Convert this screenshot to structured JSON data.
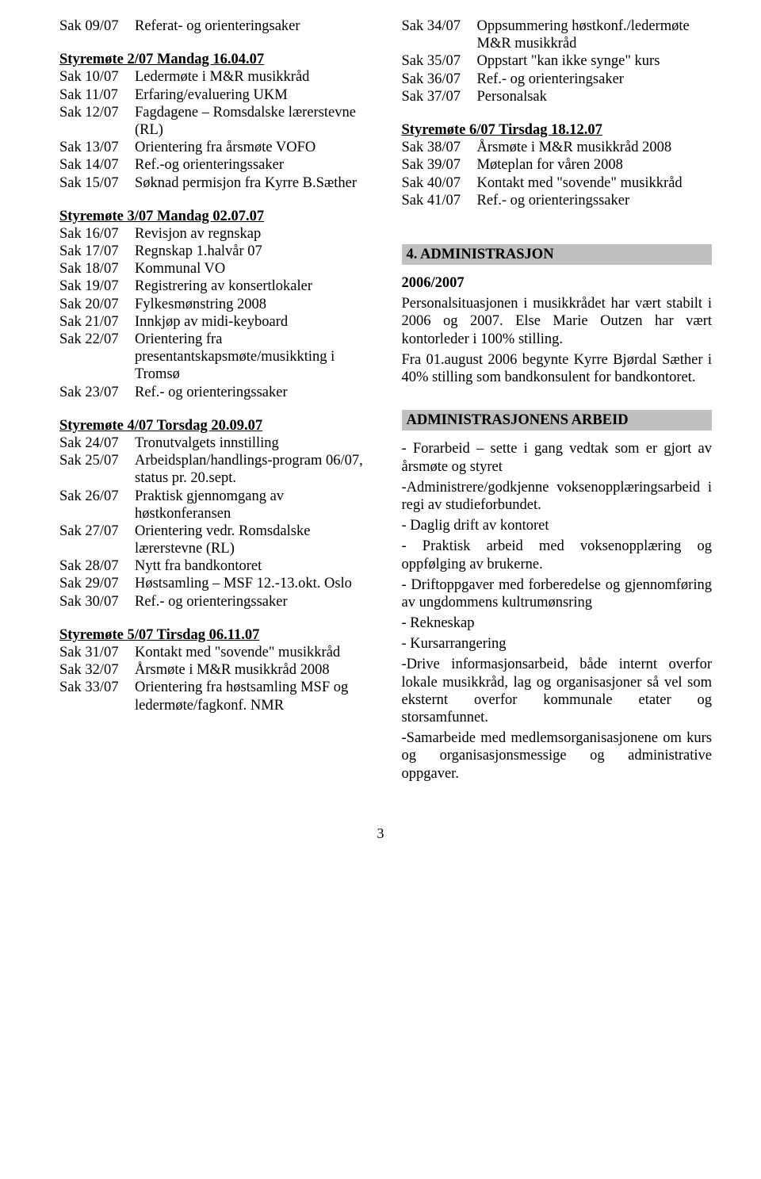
{
  "left": {
    "intro_rows": [
      {
        "label": "Sak 09/07",
        "text": "Referat- og orienteringsaker"
      }
    ],
    "meetings": [
      {
        "heading": "Styremøte 2/07  Mandag 16.04.07",
        "rows": [
          {
            "label": "Sak 10/07",
            "text": "Ledermøte i M&R musikkråd"
          },
          {
            "label": "Sak 11/07",
            "text": "Erfaring/evaluering UKM"
          },
          {
            "label": "Sak 12/07",
            "text": "Fagdagene – Romsdalske lærerstevne (RL)"
          },
          {
            "label": "Sak 13/07",
            "text": "Orientering fra årsmøte VOFO"
          },
          {
            "label": "Sak 14/07",
            "text": "Ref.-og orienteringssaker"
          },
          {
            "label": "Sak 15/07",
            "text": "Søknad permisjon fra Kyrre B.Sæther"
          }
        ]
      },
      {
        "heading": "Styremøte 3/07  Mandag 02.07.07",
        "rows": [
          {
            "label": "Sak 16/07",
            "text": "Revisjon av regnskap"
          },
          {
            "label": "Sak 17/07",
            "text": "Regnskap 1.halvår 07"
          },
          {
            "label": "Sak 18/07",
            "text": "Kommunal VO"
          },
          {
            "label": "Sak 19/07",
            "text": "Registrering av konsertlokaler"
          },
          {
            "label": "Sak 20/07",
            "text": "Fylkesmønstring 2008"
          },
          {
            "label": "Sak 21/07",
            "text": "Innkjøp av midi-keyboard"
          },
          {
            "label": "Sak 22/07",
            "text": "Orientering fra presentantskapsmøte/musikkting i Tromsø"
          },
          {
            "label": "Sak 23/07",
            "text": "Ref.- og orienteringssaker"
          }
        ]
      },
      {
        "heading": "Styremøte 4/07  Torsdag 20.09.07",
        "rows": [
          {
            "label": "Sak 24/07",
            "text": "Tronutvalgets innstilling"
          },
          {
            "label": "Sak 25/07",
            "text": "Arbeidsplan/handlings-program 06/07, status pr. 20.sept."
          },
          {
            "label": "Sak 26/07",
            "text": "Praktisk gjennomgang av høstkonferansen"
          },
          {
            "label": "Sak 27/07",
            "text": "Orientering vedr. Romsdalske lærerstevne (RL)"
          },
          {
            "label": "Sak 28/07",
            "text": "Nytt fra bandkontoret"
          },
          {
            "label": "Sak 29/07",
            "text": "Høstsamling – MSF 12.-13.okt. Oslo"
          },
          {
            "label": "Sak 30/07",
            "text": "Ref.- og orienteringssaker"
          }
        ]
      },
      {
        "heading": "Styremøte 5/07  Tirsdag 06.11.07",
        "rows": [
          {
            "label": "Sak 31/07",
            "text": "Kontakt med \"sovende\" musikkråd"
          },
          {
            "label": "Sak 32/07",
            "text": "Årsmøte i M&R musikkråd 2008"
          },
          {
            "label": "Sak 33/07",
            "text": "Orientering fra høstsamling MSF og ledermøte/fagkonf. NMR"
          }
        ]
      }
    ]
  },
  "right": {
    "intro_rows": [
      {
        "label": "Sak 34/07",
        "text": "Oppsummering høstkonf./ledermøte M&R musikkråd"
      },
      {
        "label": "Sak 35/07",
        "text": "Oppstart \"kan ikke synge\" kurs"
      },
      {
        "label": "Sak 36/07",
        "text": "Ref.- og orienteringsaker"
      },
      {
        "label": "Sak 37/07",
        "text": "Personalsak"
      }
    ],
    "meetings": [
      {
        "heading": "Styremøte 6/07  Tirsdag 18.12.07",
        "rows": [
          {
            "label": "Sak 38/07",
            "text": "Årsmøte i M&R musikkråd 2008"
          },
          {
            "label": "Sak 39/07",
            "text": "Møteplan for våren 2008"
          },
          {
            "label": "Sak 40/07",
            "text": "Kontakt med \"sovende\" musikkråd"
          },
          {
            "label": "Sak 41/07",
            "text": "Ref.- og orienteringssaker"
          }
        ]
      }
    ],
    "sections": [
      {
        "title": "4. ADMINISTRASJON",
        "paras": [
          {
            "bold": "2006/2007",
            "text": ""
          },
          {
            "text": "Personalsituasjonen i musikkrådet har vært stabilt i 2006 og 2007. Else Marie Outzen har  vært kontorleder i 100% stilling."
          },
          {
            "text": "Fra 01.august 2006 begynte Kyrre Bjørdal Sæther i 40% stilling som bandkonsulent for bandkontoret."
          }
        ]
      },
      {
        "title": "ADMINISTRASJONENS ARBEID",
        "paras": [
          {
            "text": "- Forarbeid – sette i gang vedtak som er gjort av årsmøte og styret"
          },
          {
            "text": "-Administrere/godkjenne voksenopplæringsarbeid   i   regi   av studieforbundet."
          },
          {
            "text": "- Daglig drift av kontoret"
          },
          {
            "text": "- Praktisk arbeid med voksenopplæring og oppfølging av brukerne."
          },
          {
            "text": "- Driftoppgaver med forberedelse og gjennomføring     av     ungdommens kultrumønsring"
          },
          {
            "text": "- Rekneskap"
          },
          {
            "text": "- Kursarrangering"
          },
          {
            "text": "-Drive informasjonsarbeid, både internt overfor lokale musikkråd, lag og organisasjoner så vel som eksternt overfor kommunale etater og storsamfunnet."
          },
          {
            "text": "-Samarbeide med medlemsorganisasjonene om kurs og organisasjonsmessige og administrative oppgaver."
          }
        ]
      }
    ]
  },
  "pagenum": "3"
}
